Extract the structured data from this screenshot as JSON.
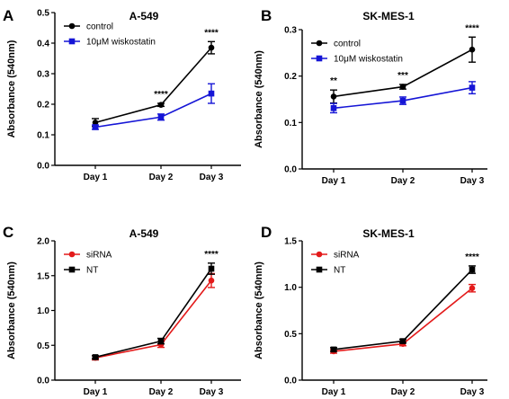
{
  "chart_data": [
    {
      "panel": "A",
      "type": "line",
      "title": "A-549",
      "ylabel": "Absorbance (540nm)",
      "categories": [
        "Day 1",
        "Day 2",
        "Day 3"
      ],
      "ylim": [
        0,
        0.5
      ],
      "yticks": [
        "0.0",
        "0.1",
        "0.2",
        "0.3",
        "0.4",
        "0.5"
      ],
      "ytick_values": [
        0,
        0.1,
        0.2,
        0.3,
        0.4,
        0.5
      ],
      "legend_position": "top-left",
      "series": [
        {
          "name": "control",
          "color": "#000000",
          "marker": "circle",
          "values": [
            0.14,
            0.198,
            0.385
          ],
          "errors": [
            0.013,
            0.005,
            0.02
          ]
        },
        {
          "name": "10μM wiskostatin",
          "color": "#1515d6",
          "marker": "square",
          "values": [
            0.125,
            0.158,
            0.235
          ],
          "errors": [
            0.007,
            0.01,
            0.032
          ]
        }
      ],
      "annotations": [
        "",
        "****",
        "****"
      ]
    },
    {
      "panel": "B",
      "type": "line",
      "title": "SK-MES-1",
      "ylabel": "Absorbance (540nm)",
      "categories": [
        "Day 1",
        "Day 2",
        "Day 3"
      ],
      "ylim": [
        0,
        0.3
      ],
      "yticks": [
        "0.0",
        "0.1",
        "0.2",
        "0.3"
      ],
      "ytick_values": [
        0,
        0.1,
        0.2,
        0.3
      ],
      "legend_position": "top-left",
      "series": [
        {
          "name": "control",
          "color": "#000000",
          "marker": "circle",
          "values": [
            0.156,
            0.177,
            0.257
          ],
          "errors": [
            0.014,
            0.005,
            0.027
          ]
        },
        {
          "name": "10μM wiskostatin",
          "color": "#1515d6",
          "marker": "square",
          "values": [
            0.131,
            0.147,
            0.175
          ],
          "errors": [
            0.01,
            0.008,
            0.013
          ]
        }
      ],
      "annotations": [
        "**",
        "***",
        "****"
      ]
    },
    {
      "panel": "C",
      "type": "line",
      "title": "A-549",
      "ylabel": "Absorbance (540nm)",
      "categories": [
        "Day 1",
        "Day 2",
        "Day 3"
      ],
      "ylim": [
        0,
        2.0
      ],
      "yticks": [
        "0.0",
        "0.5",
        "1.0",
        "1.5",
        "2.0"
      ],
      "ytick_values": [
        0,
        0.5,
        1.0,
        1.5,
        2.0
      ],
      "legend_position": "top-left",
      "series": [
        {
          "name": "siRNA",
          "color": "#e31a1a",
          "marker": "circle",
          "values": [
            0.32,
            0.51,
            1.43
          ],
          "errors": [
            0.03,
            0.04,
            0.1
          ]
        },
        {
          "name": "NT",
          "color": "#000000",
          "marker": "square",
          "values": [
            0.33,
            0.56,
            1.6
          ],
          "errors": [
            0.02,
            0.04,
            0.08
          ]
        }
      ],
      "annotations": [
        "",
        "",
        "****"
      ]
    },
    {
      "panel": "D",
      "type": "line",
      "title": "SK-MES-1",
      "ylabel": "Absorbance (540nm)",
      "categories": [
        "Day 1",
        "Day 2",
        "Day 3"
      ],
      "ylim": [
        0,
        1.5
      ],
      "yticks": [
        "0.0",
        "0.5",
        "1.0",
        "1.5"
      ],
      "ytick_values": [
        0,
        0.5,
        1.0,
        1.5
      ],
      "legend_position": "top-left",
      "series": [
        {
          "name": "siRNA",
          "color": "#e31a1a",
          "marker": "circle",
          "values": [
            0.31,
            0.39,
            0.99
          ],
          "errors": [
            0.02,
            0.02,
            0.04
          ]
        },
        {
          "name": "NT",
          "color": "#000000",
          "marker": "square",
          "values": [
            0.33,
            0.42,
            1.19
          ],
          "errors": [
            0.02,
            0.02,
            0.04
          ]
        }
      ],
      "annotations": [
        "",
        "",
        "****"
      ]
    }
  ]
}
